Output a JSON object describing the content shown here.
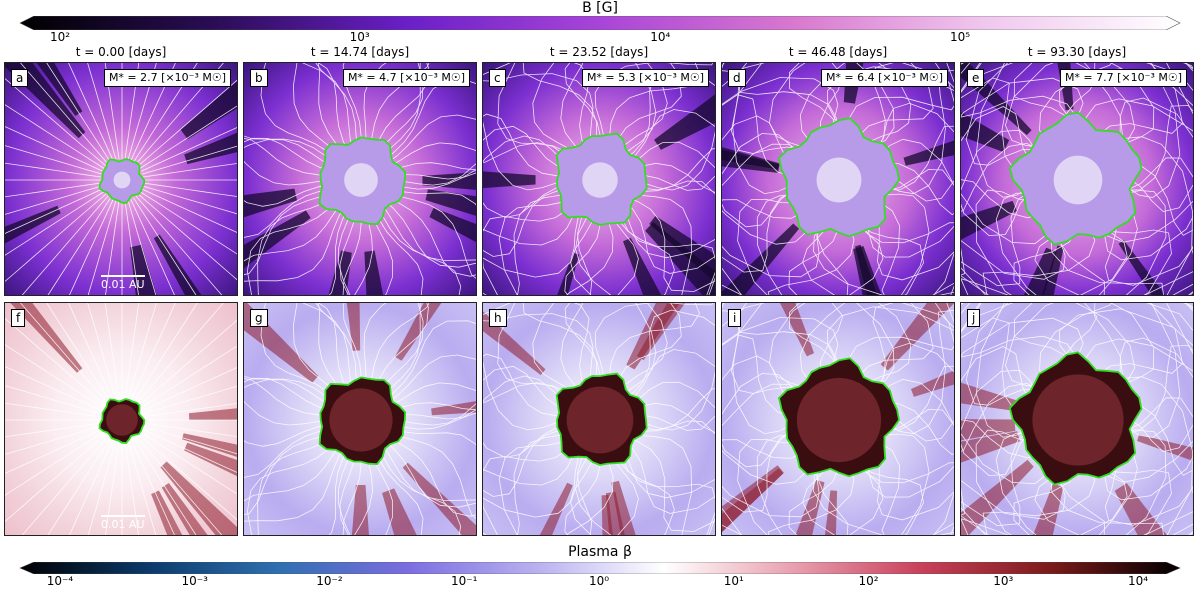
{
  "top_colorbar": {
    "label": "B [G]",
    "ticks": [
      {
        "text": "10²",
        "pos": 0
      },
      {
        "text": "10³",
        "pos": 0.333
      },
      {
        "text": "10⁴",
        "pos": 0.667
      },
      {
        "text": "10⁵",
        "pos": 1
      }
    ],
    "colors": [
      "#000000",
      "#2a0d55",
      "#6a1fc7",
      "#a845d8",
      "#d878cf",
      "#f0c8ee",
      "#ffffff"
    ]
  },
  "bottom_colorbar": {
    "label": "Plasma β",
    "ticks": [
      {
        "text": "10⁻⁴",
        "pos": 0
      },
      {
        "text": "10⁻³",
        "pos": 0.125
      },
      {
        "text": "10⁻²",
        "pos": 0.25
      },
      {
        "text": "10⁻¹",
        "pos": 0.375
      },
      {
        "text": "10⁰",
        "pos": 0.5
      },
      {
        "text": "10¹",
        "pos": 0.625
      },
      {
        "text": "10²",
        "pos": 0.75
      },
      {
        "text": "10³",
        "pos": 0.875
      },
      {
        "text": "10⁴",
        "pos": 1
      }
    ],
    "colors": [
      "#000000",
      "#0b3a6a",
      "#2f6fb0",
      "#7b6de0",
      "#b8b0f0",
      "#ffffff",
      "#e8a0b0",
      "#c8405a",
      "#7a1a1a",
      "#000000"
    ]
  },
  "columns": [
    {
      "time": "t = 0.00 [days]",
      "mass": "M* = 2.7 [×10⁻³ M☉]",
      "top_label": "a",
      "bottom_label": "f",
      "radius": 0.09
    },
    {
      "time": "t = 14.74 [days]",
      "mass": "M* = 4.7 [×10⁻³ M☉]",
      "top_label": "b",
      "bottom_label": "g",
      "radius": 0.18
    },
    {
      "time": "t = 23.52 [days]",
      "mass": "M* = 5.3 [×10⁻³ M☉]",
      "top_label": "c",
      "bottom_label": "h",
      "radius": 0.19
    },
    {
      "time": "t = 46.48 [days]",
      "mass": "M* = 6.4 [×10⁻³ M☉]",
      "top_label": "d",
      "bottom_label": "i",
      "radius": 0.24
    },
    {
      "time": "t = 93.30 [days]",
      "mass": "M* = 7.7 [×10⁻³ M☉]",
      "top_label": "e",
      "bottom_label": "j",
      "radius": 0.26
    }
  ],
  "scale_label": "0.01 AU",
  "colors": {
    "surface_contour": "#33dd22",
    "streamline": "#ffffff"
  }
}
